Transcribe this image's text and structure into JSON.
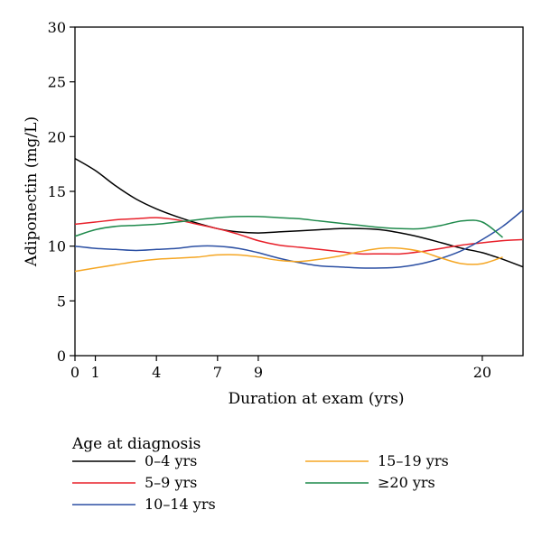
{
  "chart_data": {
    "type": "line",
    "xlabel": "Duration at exam (yrs)",
    "ylabel": "Adiponectin (mg/L)",
    "xlim": [
      0,
      22
    ],
    "ylim": [
      0,
      30
    ],
    "x_ticks": [
      0,
      1,
      4,
      7,
      9,
      20
    ],
    "y_ticks": [
      0,
      5,
      10,
      15,
      20,
      25,
      30
    ],
    "grid": false,
    "legend": {
      "title": "Age at diagnosis",
      "placement": "bottom"
    },
    "series": [
      {
        "name": "0–4 yrs",
        "color": "#000000",
        "x": [
          0,
          1,
          2,
          3,
          4,
          5,
          6,
          7,
          8,
          9,
          10,
          11,
          12,
          13,
          14,
          15,
          16,
          17,
          18,
          19,
          20,
          21,
          22
        ],
        "y": [
          18,
          16.9,
          15.5,
          14.3,
          13.4,
          12.7,
          12.1,
          11.6,
          11.3,
          11.2,
          11.3,
          11.4,
          11.5,
          11.6,
          11.6,
          11.5,
          11.2,
          10.8,
          10.3,
          9.8,
          9.4,
          8.8,
          8.1
        ]
      },
      {
        "name": "5–9 yrs",
        "color": "#e8202a",
        "x": [
          0,
          1,
          2,
          3,
          4,
          5,
          6,
          7,
          8,
          9,
          10,
          11,
          12,
          13,
          14,
          15,
          16,
          17,
          18,
          19,
          20,
          21,
          22
        ],
        "y": [
          12,
          12.2,
          12.4,
          12.5,
          12.6,
          12.4,
          12,
          11.6,
          11.1,
          10.5,
          10.1,
          9.9,
          9.7,
          9.5,
          9.3,
          9.3,
          9.3,
          9.5,
          9.8,
          10.1,
          10.3,
          10.5,
          10.6
        ]
      },
      {
        "name": "10–14 yrs",
        "color": "#2b4fa3",
        "x": [
          0,
          1,
          2,
          3,
          4,
          5,
          6,
          7,
          8,
          9,
          10,
          11,
          12,
          13,
          14,
          15,
          16,
          17,
          18,
          19,
          20,
          21,
          22
        ],
        "y": [
          10,
          9.8,
          9.7,
          9.6,
          9.7,
          9.8,
          10,
          10,
          9.8,
          9.4,
          8.9,
          8.5,
          8.2,
          8.1,
          8,
          8,
          8.1,
          8.4,
          8.9,
          9.6,
          10.6,
          11.8,
          13.3
        ]
      },
      {
        "name": "15–19 yrs",
        "color": "#f5a623",
        "x": [
          0,
          1,
          2,
          3,
          4,
          5,
          6,
          7,
          8,
          9,
          10,
          11,
          12,
          13,
          14,
          15,
          16,
          17,
          18,
          19,
          20,
          21
        ],
        "y": [
          7.7,
          8,
          8.3,
          8.6,
          8.8,
          8.9,
          9,
          9.2,
          9.2,
          9,
          8.7,
          8.6,
          8.8,
          9.1,
          9.5,
          9.8,
          9.8,
          9.5,
          8.9,
          8.4,
          8.4,
          9
        ]
      },
      {
        "name": "≥20 yrs",
        "color": "#1f8a4c",
        "x": [
          0,
          1,
          2,
          3,
          4,
          5,
          6,
          7,
          8,
          9,
          10,
          11,
          12,
          13,
          14,
          15,
          16,
          17,
          18,
          19,
          20,
          21
        ],
        "y": [
          10.9,
          11.5,
          11.8,
          11.9,
          12,
          12.2,
          12.4,
          12.6,
          12.7,
          12.7,
          12.6,
          12.5,
          12.3,
          12.1,
          11.9,
          11.7,
          11.6,
          11.6,
          11.9,
          12.3,
          12.2,
          10.8
        ]
      }
    ]
  }
}
